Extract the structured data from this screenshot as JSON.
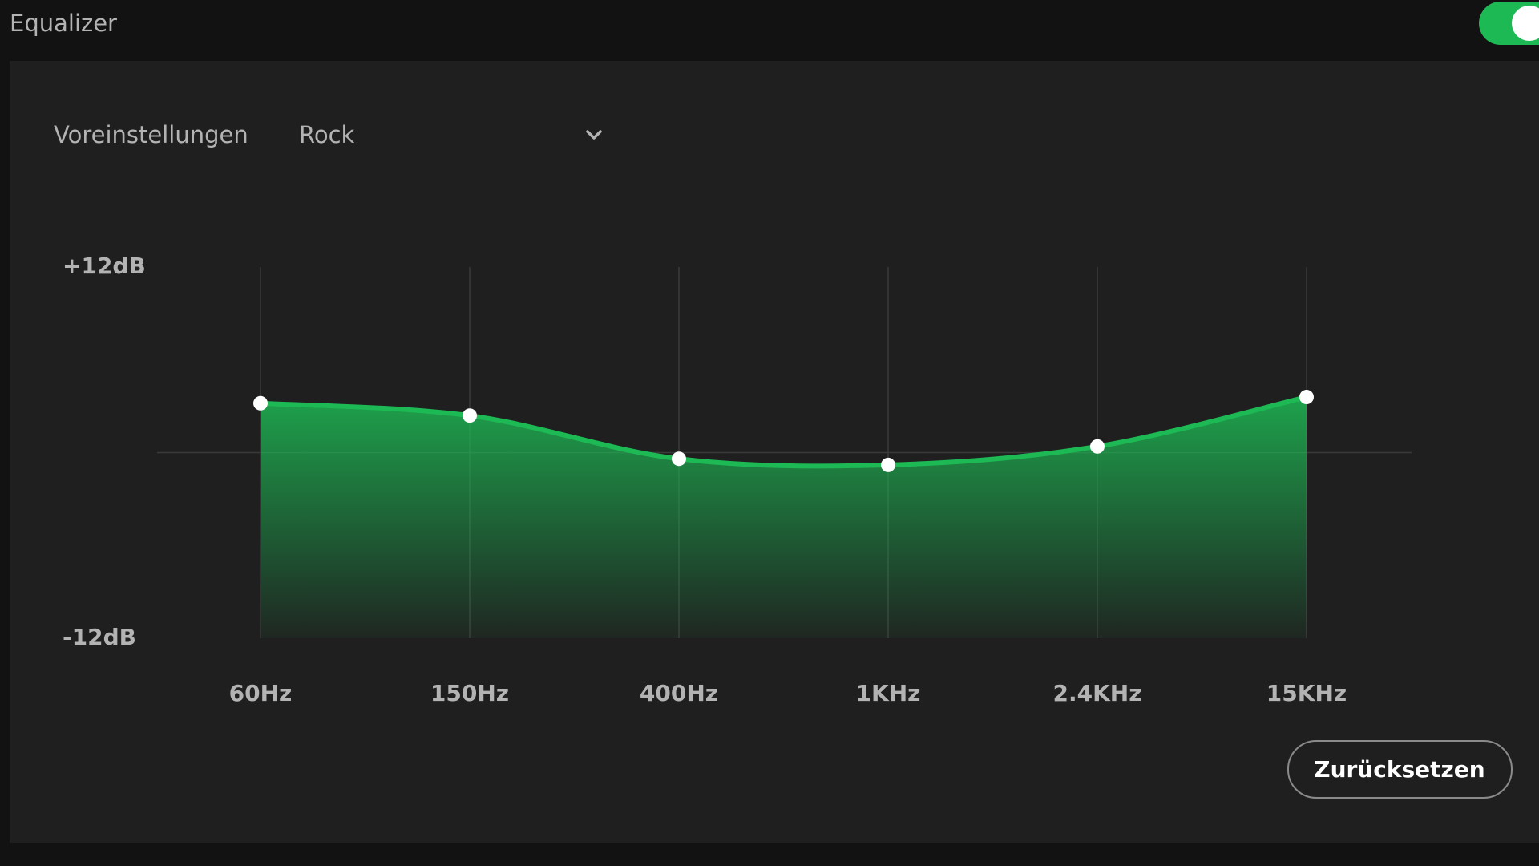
{
  "header": {
    "title": "Equalizer"
  },
  "presets": {
    "label": "Voreinstellungen",
    "value": "Rock"
  },
  "chart_data": {
    "type": "area",
    "categories": [
      "60Hz",
      "150Hz",
      "400Hz",
      "1KHz",
      "2.4KHz",
      "15KHz"
    ],
    "values": [
      3.2,
      2.4,
      -0.4,
      -0.8,
      0.4,
      3.6
    ],
    "color": "#1db954",
    "ylim": [
      -12,
      12
    ],
    "yticks": [
      {
        "value": 12,
        "label": "+12dB"
      },
      {
        "value": -12,
        "label": "-12dB"
      }
    ],
    "grid": true
  },
  "reset_button": {
    "label": "Zurücksetzen"
  }
}
